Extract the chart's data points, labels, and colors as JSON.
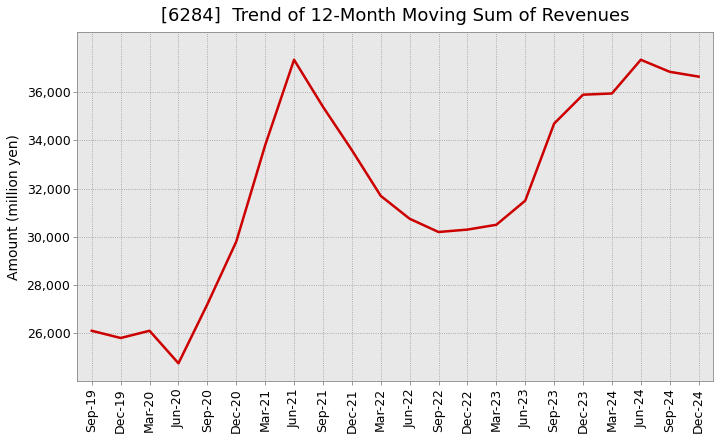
{
  "title": "[6284]  Trend of 12-Month Moving Sum of Revenues",
  "ylabel": "Amount (million yen)",
  "background_color": "#ffffff",
  "plot_bg_color": "#e8e8e8",
  "line_color": "#cc0000",
  "line_width": 1.8,
  "x_labels": [
    "Sep-19",
    "Dec-19",
    "Mar-20",
    "Jun-20",
    "Sep-20",
    "Dec-20",
    "Mar-21",
    "Jun-21",
    "Sep-21",
    "Dec-21",
    "Mar-22",
    "Jun-22",
    "Sep-22",
    "Dec-22",
    "Mar-23",
    "Jun-23",
    "Sep-23",
    "Dec-23",
    "Mar-24",
    "Jun-24",
    "Sep-24",
    "Dec-24"
  ],
  "y_values": [
    26100,
    25800,
    26100,
    24750,
    27200,
    29800,
    33800,
    37350,
    35400,
    33600,
    31700,
    30750,
    30200,
    30300,
    30500,
    31500,
    34700,
    35900,
    35950,
    37350,
    36850,
    36650
  ],
  "ylim_min": 24000,
  "ylim_max": 38500,
  "ytick_values": [
    26000,
    28000,
    30000,
    32000,
    34000,
    36000
  ],
  "title_fontsize": 13,
  "ylabel_fontsize": 10,
  "tick_fontsize": 9
}
